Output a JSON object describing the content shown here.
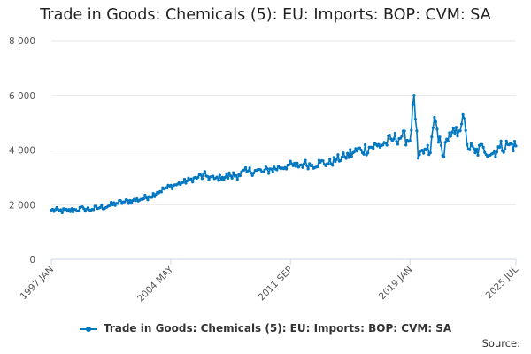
{
  "chart_data": {
    "type": "line",
    "title": "Trade in Goods: Chemicals (5): EU: Imports: BOP: CVM: SA",
    "source_label": "Source:",
    "y_ticks": [
      "0",
      "2 000",
      "4 000",
      "6 000",
      "8 000"
    ],
    "ylim": [
      0,
      8000
    ],
    "x_ticks": [
      "1997 JAN",
      "2004 MAY",
      "2011 SEP",
      "2019 JAN",
      "2025 JUL"
    ],
    "x_range": [
      "1997 JAN",
      "2025 JUL"
    ],
    "grid": true,
    "legend_position": "bottom",
    "colors": {
      "series": "#0077c0",
      "grid": "#e6e6e6",
      "axis": "#ccd6eb"
    },
    "series": [
      {
        "name": "Trade in Goods: Chemicals (5): EU: Imports: BOP: CVM: SA",
        "frequency": "monthly",
        "x": [
          "1997-01",
          "1997-07",
          "1998-01",
          "1998-07",
          "1999-01",
          "1999-07",
          "2000-01",
          "2000-07",
          "2001-01",
          "2001-07",
          "2002-01",
          "2002-07",
          "2003-01",
          "2003-07",
          "2004-01",
          "2004-07",
          "2005-01",
          "2005-07",
          "2006-01",
          "2006-07",
          "2007-01",
          "2007-07",
          "2008-01",
          "2008-07",
          "2009-01",
          "2009-07",
          "2010-01",
          "2010-07",
          "2011-01",
          "2011-07",
          "2012-01",
          "2012-07",
          "2013-01",
          "2013-07",
          "2014-01",
          "2014-07",
          "2015-01",
          "2015-07",
          "2016-01",
          "2016-07",
          "2017-01",
          "2017-07",
          "2018-01",
          "2018-07",
          "2019-01",
          "2019-04",
          "2019-07",
          "2020-01",
          "2020-04",
          "2020-07",
          "2021-01",
          "2021-04",
          "2021-07",
          "2022-01",
          "2022-04",
          "2022-07",
          "2023-01",
          "2023-07",
          "2024-01",
          "2024-07",
          "2025-01",
          "2025-07"
        ],
        "values": [
          1800,
          1780,
          1760,
          1820,
          1850,
          1830,
          1900,
          1950,
          2050,
          2100,
          2150,
          2200,
          2300,
          2450,
          2600,
          2700,
          2800,
          2900,
          3000,
          3050,
          2950,
          3000,
          3050,
          3100,
          3200,
          3250,
          3200,
          3300,
          3350,
          3450,
          3400,
          3500,
          3450,
          3550,
          3500,
          3650,
          3750,
          3900,
          4000,
          4100,
          4150,
          4250,
          4400,
          4500,
          4350,
          6000,
          3700,
          4000,
          3900,
          5200,
          3800,
          4400,
          4500,
          4700,
          5300,
          4200,
          3900,
          4100,
          3850,
          4100,
          4200,
          4150
        ]
      }
    ]
  }
}
